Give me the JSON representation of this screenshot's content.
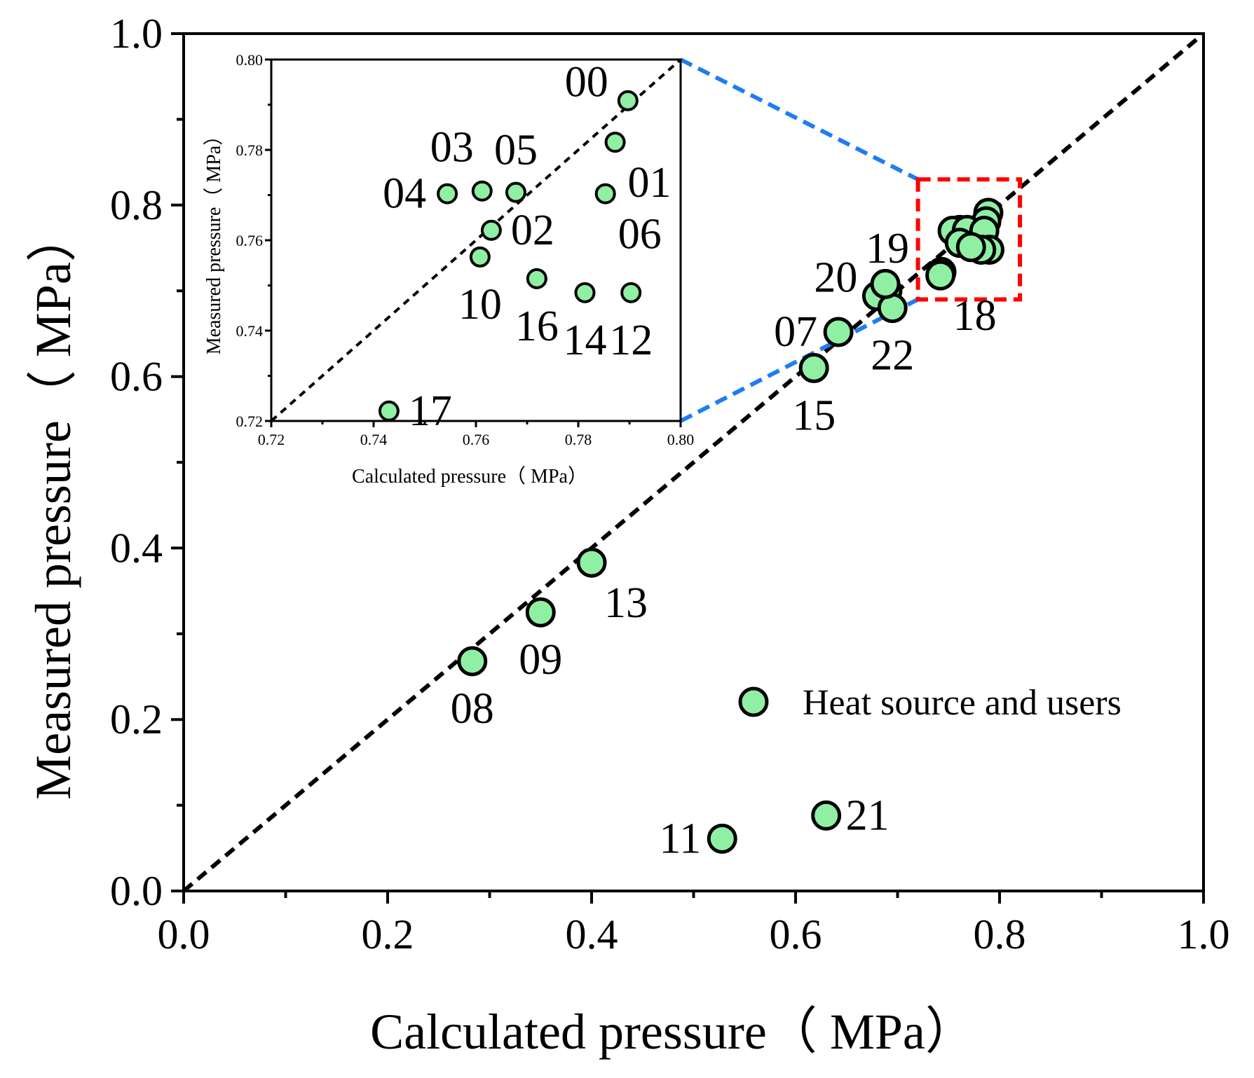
{
  "chart_data": {
    "type": "scatter",
    "main": {
      "xlabel": "Calculated pressure（  MPa）",
      "ylabel": "Measured pressure（  MPa）",
      "xlim": [
        0,
        1.0
      ],
      "ylim": [
        0,
        1.0
      ],
      "ticks": [
        0.0,
        0.2,
        0.4,
        0.6,
        0.8,
        1.0
      ],
      "tick_labels": [
        "0.0",
        "0.2",
        "0.4",
        "0.6",
        "0.8",
        "1.0"
      ],
      "reference_line": "y = x",
      "zoom_box": {
        "x": [
          0.72,
          0.82
        ],
        "y": [
          0.69,
          0.83
        ]
      },
      "points": [
        {
          "label": "00",
          "x": 0.789,
          "y": 0.791,
          "show": false
        },
        {
          "label": "01",
          "x": 0.787,
          "y": 0.781,
          "show": false
        },
        {
          "label": "02",
          "x": 0.763,
          "y": 0.762,
          "show": false
        },
        {
          "label": "03",
          "x": 0.761,
          "y": 0.771,
          "show": false
        },
        {
          "label": "04",
          "x": 0.754,
          "y": 0.77,
          "show": false
        },
        {
          "label": "05",
          "x": 0.768,
          "y": 0.771,
          "show": false
        },
        {
          "label": "06",
          "x": 0.785,
          "y": 0.77,
          "show": false
        },
        {
          "label": "10",
          "x": 0.761,
          "y": 0.756,
          "show": false
        },
        {
          "label": "12",
          "x": 0.79,
          "y": 0.748,
          "show": false
        },
        {
          "label": "14",
          "x": 0.782,
          "y": 0.748,
          "show": false
        },
        {
          "label": "16",
          "x": 0.772,
          "y": 0.751,
          "show": false
        },
        {
          "label": "17",
          "x": 0.743,
          "y": 0.722,
          "show": false
        },
        {
          "label": "18",
          "x": 0.742,
          "y": 0.718,
          "show": true,
          "pos": "below-right"
        },
        {
          "label": "19",
          "x": 0.69,
          "y": 0.7,
          "show": true,
          "pos": "above"
        },
        {
          "label": "20",
          "x": 0.68,
          "y": 0.694,
          "show": true,
          "pos": "left-up"
        },
        {
          "label": "22",
          "x": 0.695,
          "y": 0.68,
          "show": true,
          "pos": "below"
        },
        {
          "label": "",
          "x": 0.688,
          "y": 0.708,
          "show": false
        },
        {
          "label": "07",
          "x": 0.642,
          "y": 0.652,
          "show": true,
          "pos": "left"
        },
        {
          "label": "15",
          "x": 0.618,
          "y": 0.61,
          "show": true,
          "pos": "below"
        },
        {
          "label": "13",
          "x": 0.4,
          "y": 0.383,
          "show": true,
          "pos": "below-right"
        },
        {
          "label": "09",
          "x": 0.35,
          "y": 0.325,
          "show": true,
          "pos": "below"
        },
        {
          "label": "08",
          "x": 0.283,
          "y": 0.268,
          "show": true,
          "pos": "below"
        },
        {
          "label": "11",
          "x": 0.528,
          "y": 0.061,
          "show": true,
          "pos": "left"
        },
        {
          "label": "21",
          "x": 0.63,
          "y": 0.088,
          "show": true,
          "pos": "right"
        }
      ]
    },
    "inset": {
      "xlabel": "Calculated pressure（  MPa）",
      "ylabel": "Measured pressure（  MPa）",
      "xlim": [
        0.72,
        0.8
      ],
      "ylim": [
        0.72,
        0.8
      ],
      "ticks": [
        0.72,
        0.74,
        0.76,
        0.78,
        0.8
      ],
      "tick_labels": [
        "0.72",
        "0.74",
        "0.76",
        "0.78",
        "0.80"
      ],
      "reference_line": "y = x",
      "points": [
        {
          "label": "00",
          "x": 0.7897,
          "y": 0.7909,
          "pos": "left-up"
        },
        {
          "label": "01",
          "x": 0.7872,
          "y": 0.7817,
          "pos": "below-right"
        },
        {
          "label": "02",
          "x": 0.763,
          "y": 0.7622,
          "pos": "right"
        },
        {
          "label": "03",
          "x": 0.7612,
          "y": 0.7709,
          "pos": "above-left"
        },
        {
          "label": "04",
          "x": 0.7544,
          "y": 0.7703,
          "pos": "left"
        },
        {
          "label": "05",
          "x": 0.7678,
          "y": 0.7706,
          "pos": "above"
        },
        {
          "label": "06",
          "x": 0.7853,
          "y": 0.7703,
          "pos": "below-right"
        },
        {
          "label": "10",
          "x": 0.7608,
          "y": 0.7563,
          "pos": "below"
        },
        {
          "label": "12",
          "x": 0.7903,
          "y": 0.7484,
          "pos": "below"
        },
        {
          "label": "14",
          "x": 0.7813,
          "y": 0.7484,
          "pos": "below"
        },
        {
          "label": "16",
          "x": 0.7719,
          "y": 0.7515,
          "pos": "below"
        },
        {
          "label": "17",
          "x": 0.743,
          "y": 0.7222,
          "pos": "right"
        }
      ]
    },
    "legend": {
      "label": "Heat source and users",
      "placement": "bottom-right"
    },
    "colors": {
      "marker_fill": "#8ff0a4",
      "marker_edge": "#000000",
      "reference_line": "#000000",
      "zoom_box": "#ff0000",
      "connector": "#1e7ef0"
    }
  }
}
